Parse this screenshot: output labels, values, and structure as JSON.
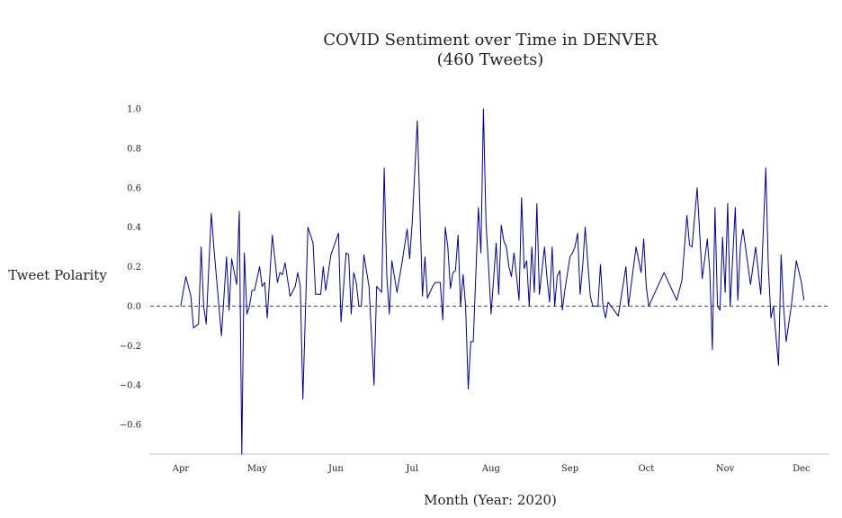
{
  "chart_data": {
    "type": "line",
    "title_lines": [
      "COVID Sentiment over Time in DENVER",
      "(460 Tweets)"
    ],
    "xlabel": "Month (Year: 2020)",
    "ylabel": "Tweet Polarity",
    "x_ticks": [
      {
        "label": "Apr",
        "date": "2020-04-01"
      },
      {
        "label": "May",
        "date": "2020-05-01"
      },
      {
        "label": "Jun",
        "date": "2020-06-01"
      },
      {
        "label": "Jul",
        "date": "2020-07-01"
      },
      {
        "label": "Aug",
        "date": "2020-08-01"
      },
      {
        "label": "Sep",
        "date": "2020-09-01"
      },
      {
        "label": "Oct",
        "date": "2020-10-01"
      },
      {
        "label": "Nov",
        "date": "2020-11-01"
      },
      {
        "label": "Dec",
        "date": "2020-12-01"
      }
    ],
    "y_ticks": [
      {
        "label": "1.0",
        "value": 1.0
      },
      {
        "label": "0.8",
        "value": 0.8
      },
      {
        "label": "0.6",
        "value": 0.6
      },
      {
        "label": "0.4",
        "value": 0.4
      },
      {
        "label": "0.2",
        "value": 0.2
      },
      {
        "label": "0.0",
        "value": 0.0
      },
      {
        "label": "−0.2",
        "value": -0.2
      },
      {
        "label": "−0.4",
        "value": -0.4
      },
      {
        "label": "−0.6",
        "value": -0.6
      }
    ],
    "xlim": [
      "2020-03-20",
      "2020-12-12"
    ],
    "ylim": [
      -0.75,
      1.05
    ],
    "reference_line": {
      "value": 0.0,
      "style": "dashed"
    },
    "grid": false,
    "legend": "none",
    "series": [
      {
        "color": "#00008b",
        "points": [
          [
            "2020-04-01",
            0.0
          ],
          [
            "2020-04-03",
            0.15
          ],
          [
            "2020-04-05",
            0.05
          ],
          [
            "2020-04-06",
            -0.11
          ],
          [
            "2020-04-08",
            -0.09
          ],
          [
            "2020-04-09",
            0.3
          ],
          [
            "2020-04-10",
            0.0
          ],
          [
            "2020-04-11",
            -0.09
          ],
          [
            "2020-04-13",
            0.47
          ],
          [
            "2020-04-14",
            0.3
          ],
          [
            "2020-04-17",
            -0.15
          ],
          [
            "2020-04-19",
            0.25
          ],
          [
            "2020-04-20",
            -0.02
          ],
          [
            "2020-04-21",
            0.24
          ],
          [
            "2020-04-23",
            0.11
          ],
          [
            "2020-04-24",
            0.48
          ],
          [
            "2020-04-25",
            -0.75
          ],
          [
            "2020-04-26",
            0.27
          ],
          [
            "2020-04-27",
            -0.04
          ],
          [
            "2020-04-28",
            0.0
          ],
          [
            "2020-04-29",
            0.08
          ],
          [
            "2020-04-30",
            0.08
          ],
          [
            "2020-05-02",
            0.2
          ],
          [
            "2020-05-03",
            0.1
          ],
          [
            "2020-05-04",
            0.12
          ],
          [
            "2020-05-05",
            -0.06
          ],
          [
            "2020-05-07",
            0.36
          ],
          [
            "2020-05-09",
            0.12
          ],
          [
            "2020-05-10",
            0.17
          ],
          [
            "2020-05-11",
            0.16
          ],
          [
            "2020-05-12",
            0.22
          ],
          [
            "2020-05-14",
            0.05
          ],
          [
            "2020-05-16",
            0.1
          ],
          [
            "2020-05-17",
            0.17
          ],
          [
            "2020-05-18",
            0.1
          ],
          [
            "2020-05-19",
            -0.47
          ],
          [
            "2020-05-21",
            0.4
          ],
          [
            "2020-05-23",
            0.32
          ],
          [
            "2020-05-24",
            0.06
          ],
          [
            "2020-05-26",
            0.06
          ],
          [
            "2020-05-27",
            0.2
          ],
          [
            "2020-05-28",
            0.08
          ],
          [
            "2020-05-30",
            0.26
          ],
          [
            "2020-06-02",
            0.37
          ],
          [
            "2020-06-03",
            -0.08
          ],
          [
            "2020-06-05",
            0.27
          ],
          [
            "2020-06-06",
            0.26
          ],
          [
            "2020-06-07",
            -0.04
          ],
          [
            "2020-06-08",
            0.17
          ],
          [
            "2020-06-09",
            0.12
          ],
          [
            "2020-06-10",
            0.0
          ],
          [
            "2020-06-11",
            0.0
          ],
          [
            "2020-06-12",
            0.26
          ],
          [
            "2020-06-14",
            0.1
          ],
          [
            "2020-06-16",
            -0.4
          ],
          [
            "2020-06-17",
            0.1
          ],
          [
            "2020-06-19",
            0.07
          ],
          [
            "2020-06-20",
            0.7
          ],
          [
            "2020-06-21",
            0.15
          ],
          [
            "2020-06-22",
            -0.04
          ],
          [
            "2020-06-23",
            0.23
          ],
          [
            "2020-06-25",
            0.07
          ],
          [
            "2020-06-27",
            0.22
          ],
          [
            "2020-06-29",
            0.39
          ],
          [
            "2020-06-30",
            0.24
          ],
          [
            "2020-07-01",
            0.43
          ],
          [
            "2020-07-03",
            0.94
          ],
          [
            "2020-07-05",
            0.05
          ],
          [
            "2020-07-06",
            0.25
          ],
          [
            "2020-07-07",
            0.04
          ],
          [
            "2020-07-09",
            0.1
          ],
          [
            "2020-07-10",
            0.12
          ],
          [
            "2020-07-12",
            0.12
          ],
          [
            "2020-07-13",
            -0.07
          ],
          [
            "2020-07-14",
            0.4
          ],
          [
            "2020-07-15",
            0.3
          ],
          [
            "2020-07-16",
            0.09
          ],
          [
            "2020-07-17",
            0.17
          ],
          [
            "2020-07-18",
            0.18
          ],
          [
            "2020-07-19",
            0.36
          ],
          [
            "2020-07-20",
            0.0
          ],
          [
            "2020-07-21",
            0.16
          ],
          [
            "2020-07-22",
            0.0
          ],
          [
            "2020-07-23",
            -0.42
          ],
          [
            "2020-07-24",
            -0.18
          ],
          [
            "2020-07-25",
            -0.18
          ],
          [
            "2020-07-27",
            0.5
          ],
          [
            "2020-07-28",
            0.27
          ],
          [
            "2020-07-29",
            1.0
          ],
          [
            "2020-07-30",
            0.42
          ],
          [
            "2020-07-31",
            0.2
          ],
          [
            "2020-08-01",
            -0.04
          ],
          [
            "2020-08-03",
            0.32
          ],
          [
            "2020-08-04",
            0.06
          ],
          [
            "2020-08-05",
            0.41
          ],
          [
            "2020-08-06",
            0.33
          ],
          [
            "2020-08-07",
            0.3
          ],
          [
            "2020-08-08",
            0.2
          ],
          [
            "2020-08-09",
            0.15
          ],
          [
            "2020-08-10",
            0.27
          ],
          [
            "2020-08-12",
            0.03
          ],
          [
            "2020-08-13",
            0.55
          ],
          [
            "2020-08-14",
            0.19
          ],
          [
            "2020-08-15",
            0.23
          ],
          [
            "2020-08-16",
            0.0
          ],
          [
            "2020-08-17",
            0.3
          ],
          [
            "2020-08-18",
            0.07
          ],
          [
            "2020-08-19",
            0.52
          ],
          [
            "2020-08-20",
            0.06
          ],
          [
            "2020-08-22",
            0.3
          ],
          [
            "2020-08-23",
            0.14
          ],
          [
            "2020-08-24",
            0.02
          ],
          [
            "2020-08-25",
            0.3
          ],
          [
            "2020-08-26",
            0.0
          ],
          [
            "2020-08-27",
            0.15
          ],
          [
            "2020-08-28",
            0.18
          ],
          [
            "2020-08-29",
            -0.02
          ],
          [
            "2020-08-30",
            0.08
          ],
          [
            "2020-09-01",
            0.25
          ],
          [
            "2020-09-02",
            0.27
          ],
          [
            "2020-09-03",
            0.3
          ],
          [
            "2020-09-04",
            0.37
          ],
          [
            "2020-09-05",
            0.06
          ],
          [
            "2020-09-06",
            0.2
          ],
          [
            "2020-09-07",
            0.4
          ],
          [
            "2020-09-09",
            0.05
          ],
          [
            "2020-09-10",
            0.0
          ],
          [
            "2020-09-12",
            0.0
          ],
          [
            "2020-09-13",
            0.21
          ],
          [
            "2020-09-14",
            0.0
          ],
          [
            "2020-09-15",
            -0.06
          ],
          [
            "2020-09-16",
            0.02
          ],
          [
            "2020-09-20",
            -0.05
          ],
          [
            "2020-09-23",
            0.2
          ],
          [
            "2020-09-24",
            0.0
          ],
          [
            "2020-09-27",
            0.3
          ],
          [
            "2020-09-29",
            0.17
          ],
          [
            "2020-09-30",
            0.34
          ],
          [
            "2020-10-01",
            0.1
          ],
          [
            "2020-10-02",
            0.0
          ],
          [
            "2020-10-08",
            0.17
          ],
          [
            "2020-10-13",
            0.03
          ],
          [
            "2020-10-15",
            0.13
          ],
          [
            "2020-10-17",
            0.46
          ],
          [
            "2020-10-18",
            0.31
          ],
          [
            "2020-10-19",
            0.3
          ],
          [
            "2020-10-21",
            0.6
          ],
          [
            "2020-10-23",
            0.14
          ],
          [
            "2020-10-25",
            0.34
          ],
          [
            "2020-10-26",
            0.17
          ],
          [
            "2020-10-27",
            -0.22
          ],
          [
            "2020-10-28",
            0.5
          ],
          [
            "2020-10-29",
            0.0
          ],
          [
            "2020-10-30",
            -0.02
          ],
          [
            "2020-10-31",
            0.35
          ],
          [
            "2020-11-01",
            0.07
          ],
          [
            "2020-11-02",
            0.52
          ],
          [
            "2020-11-03",
            0.0
          ],
          [
            "2020-11-05",
            0.5
          ],
          [
            "2020-11-06",
            0.03
          ],
          [
            "2020-11-07",
            0.3
          ],
          [
            "2020-11-08",
            0.39
          ],
          [
            "2020-11-09",
            0.3
          ],
          [
            "2020-11-11",
            0.11
          ],
          [
            "2020-11-13",
            0.3
          ],
          [
            "2020-11-15",
            0.06
          ],
          [
            "2020-11-17",
            0.7
          ],
          [
            "2020-11-18",
            0.2
          ],
          [
            "2020-11-19",
            -0.06
          ],
          [
            "2020-11-20",
            0.0
          ],
          [
            "2020-11-22",
            -0.3
          ],
          [
            "2020-11-23",
            0.26
          ],
          [
            "2020-11-24",
            0.0
          ],
          [
            "2020-11-25",
            -0.18
          ],
          [
            "2020-11-27",
            0.0
          ],
          [
            "2020-11-29",
            0.23
          ],
          [
            "2020-12-01",
            0.12
          ],
          [
            "2020-12-02",
            0.03
          ]
        ]
      }
    ]
  }
}
